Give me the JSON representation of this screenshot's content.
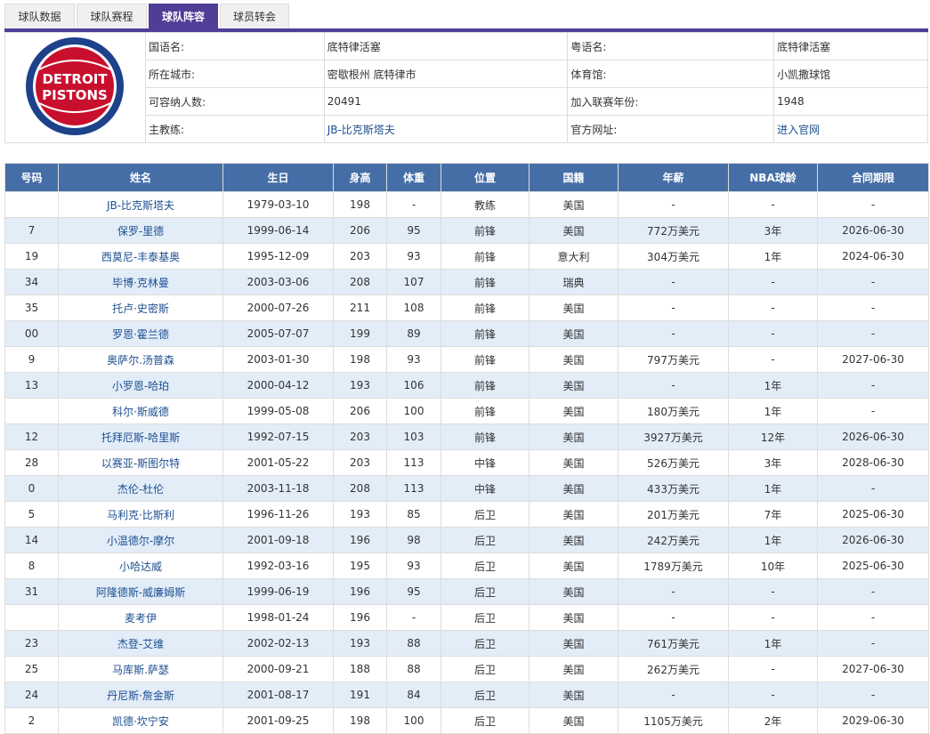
{
  "tabs": [
    {
      "label": "球队数据"
    },
    {
      "label": "球队赛程"
    },
    {
      "label": "球队阵容",
      "active": true
    },
    {
      "label": "球员转会"
    }
  ],
  "colors": {
    "tab_active": "#4f3d97",
    "header": "#456ea6",
    "alt_row": "#e3edf8",
    "link": "#1d4f91"
  },
  "team": {
    "logo_text": [
      "DETROIT",
      "PISTONS"
    ],
    "rows": [
      {
        "l1": "国语名:",
        "v1": "底特律活塞",
        "l2": "粤语名:",
        "v2": "底特律活塞"
      },
      {
        "l1": "所在城市:",
        "v1": "密歇根州 底特律市",
        "l2": "体育馆:",
        "v2": "小凯撒球馆"
      },
      {
        "l1": "可容纳人数:",
        "v1": "20491",
        "l2": "加入联赛年份:",
        "v2": "1948"
      },
      {
        "l1": "主教练:",
        "v1": "JB-比克斯塔夫",
        "l2": "官方网址:",
        "v2": "进入官网"
      }
    ]
  },
  "roster": {
    "headers": [
      "号码",
      "姓名",
      "生日",
      "身高",
      "体重",
      "位置",
      "国籍",
      "年薪",
      "NBA球龄",
      "合同期限"
    ],
    "rows": [
      [
        "",
        "JB-比克斯塔夫",
        "1979-03-10",
        "198",
        "-",
        "教练",
        "美国",
        "-",
        "-",
        "-"
      ],
      [
        "7",
        "保罗-里德",
        "1999-06-14",
        "206",
        "95",
        "前锋",
        "美国",
        "772万美元",
        "3年",
        "2026-06-30"
      ],
      [
        "19",
        "西莫尼-丰泰基奥",
        "1995-12-09",
        "203",
        "93",
        "前锋",
        "意大利",
        "304万美元",
        "1年",
        "2024-06-30"
      ],
      [
        "34",
        "毕博·克林曼",
        "2003-03-06",
        "208",
        "107",
        "前锋",
        "瑞典",
        "-",
        "-",
        "-"
      ],
      [
        "35",
        "托卢·史密斯",
        "2000-07-26",
        "211",
        "108",
        "前锋",
        "美国",
        "-",
        "-",
        "-"
      ],
      [
        "00",
        "罗恩·霍兰德",
        "2005-07-07",
        "199",
        "89",
        "前锋",
        "美国",
        "-",
        "-",
        "-"
      ],
      [
        "9",
        "奥萨尔.汤普森",
        "2003-01-30",
        "198",
        "93",
        "前锋",
        "美国",
        "797万美元",
        "-",
        "2027-06-30"
      ],
      [
        "13",
        "小罗恩-哈珀",
        "2000-04-12",
        "193",
        "106",
        "前锋",
        "美国",
        "-",
        "1年",
        "-"
      ],
      [
        "",
        "科尔·斯威德",
        "1999-05-08",
        "206",
        "100",
        "前锋",
        "美国",
        "180万美元",
        "1年",
        "-"
      ],
      [
        "12",
        "托拜厄斯-哈里斯",
        "1992-07-15",
        "203",
        "103",
        "前锋",
        "美国",
        "3927万美元",
        "12年",
        "2026-06-30"
      ],
      [
        "28",
        "以赛亚-斯图尔特",
        "2001-05-22",
        "203",
        "113",
        "中锋",
        "美国",
        "526万美元",
        "3年",
        "2028-06-30"
      ],
      [
        "0",
        "杰伦-杜伦",
        "2003-11-18",
        "208",
        "113",
        "中锋",
        "美国",
        "433万美元",
        "1年",
        "-"
      ],
      [
        "5",
        "马利克·比斯利",
        "1996-11-26",
        "193",
        "85",
        "后卫",
        "美国",
        "201万美元",
        "7年",
        "2025-06-30"
      ],
      [
        "14",
        "小温德尔-摩尔",
        "2001-09-18",
        "196",
        "98",
        "后卫",
        "美国",
        "242万美元",
        "1年",
        "2026-06-30"
      ],
      [
        "8",
        "小哈达威",
        "1992-03-16",
        "195",
        "93",
        "后卫",
        "美国",
        "1789万美元",
        "10年",
        "2025-06-30"
      ],
      [
        "31",
        "阿隆德斯-威廉姆斯",
        "1999-06-19",
        "196",
        "95",
        "后卫",
        "美国",
        "-",
        "-",
        "-"
      ],
      [
        "",
        "麦考伊",
        "1998-01-24",
        "196",
        "-",
        "后卫",
        "美国",
        "-",
        "-",
        "-"
      ],
      [
        "23",
        "杰登-艾维",
        "2002-02-13",
        "193",
        "88",
        "后卫",
        "美国",
        "761万美元",
        "1年",
        "-"
      ],
      [
        "25",
        "马库斯.萨瑟",
        "2000-09-21",
        "188",
        "88",
        "后卫",
        "美国",
        "262万美元",
        "-",
        "2027-06-30"
      ],
      [
        "24",
        "丹尼斯·詹金斯",
        "2001-08-17",
        "191",
        "84",
        "后卫",
        "美国",
        "-",
        "-",
        "-"
      ],
      [
        "2",
        "凯德·坎宁安",
        "2001-09-25",
        "198",
        "100",
        "后卫",
        "美国",
        "1105万美元",
        "2年",
        "2029-06-30"
      ]
    ]
  }
}
